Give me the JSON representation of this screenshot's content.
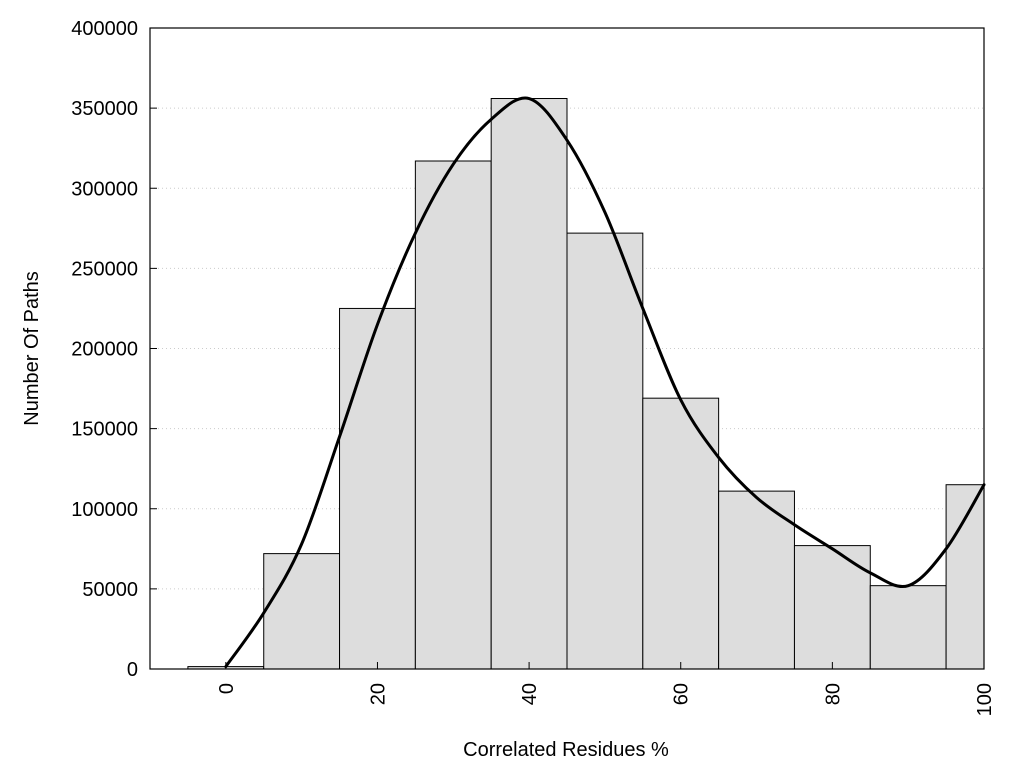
{
  "chart_data": {
    "type": "bar",
    "title": "",
    "xlabel": "Correlated Residues %",
    "ylabel": "Number Of Paths",
    "xlim": [
      -10,
      100
    ],
    "ylim": [
      0,
      400000
    ],
    "xticks": [
      0,
      20,
      40,
      60,
      80,
      100
    ],
    "yticks": [
      0,
      50000,
      100000,
      150000,
      200000,
      250000,
      300000,
      350000,
      400000
    ],
    "grid": "horizontal dotted",
    "bin_width": 10,
    "bars": [
      {
        "x": 0,
        "value": 1500
      },
      {
        "x": 10,
        "value": 72000
      },
      {
        "x": 20,
        "value": 225000
      },
      {
        "x": 30,
        "value": 317000
      },
      {
        "x": 40,
        "value": 356000
      },
      {
        "x": 50,
        "value": 272000
      },
      {
        "x": 60,
        "value": 169000
      },
      {
        "x": 70,
        "value": 111000
      },
      {
        "x": 80,
        "value": 77000
      },
      {
        "x": 90,
        "value": 52000
      },
      {
        "x": 100,
        "value": 115000
      }
    ],
    "curve": [
      [
        0,
        1500
      ],
      [
        5,
        35000
      ],
      [
        10,
        78000
      ],
      [
        15,
        145000
      ],
      [
        20,
        215000
      ],
      [
        25,
        272000
      ],
      [
        30,
        315000
      ],
      [
        35,
        343000
      ],
      [
        40,
        356000
      ],
      [
        45,
        330000
      ],
      [
        50,
        285000
      ],
      [
        55,
        225000
      ],
      [
        60,
        168000
      ],
      [
        65,
        132000
      ],
      [
        70,
        107000
      ],
      [
        75,
        90000
      ],
      [
        80,
        75000
      ],
      [
        85,
        60000
      ],
      [
        90,
        52000
      ],
      [
        95,
        75000
      ],
      [
        100,
        115000
      ]
    ],
    "colors": {
      "bar_fill": "#dddddd",
      "bar_stroke": "#000000",
      "curve": "#000000",
      "grid": "#cccccc"
    }
  }
}
